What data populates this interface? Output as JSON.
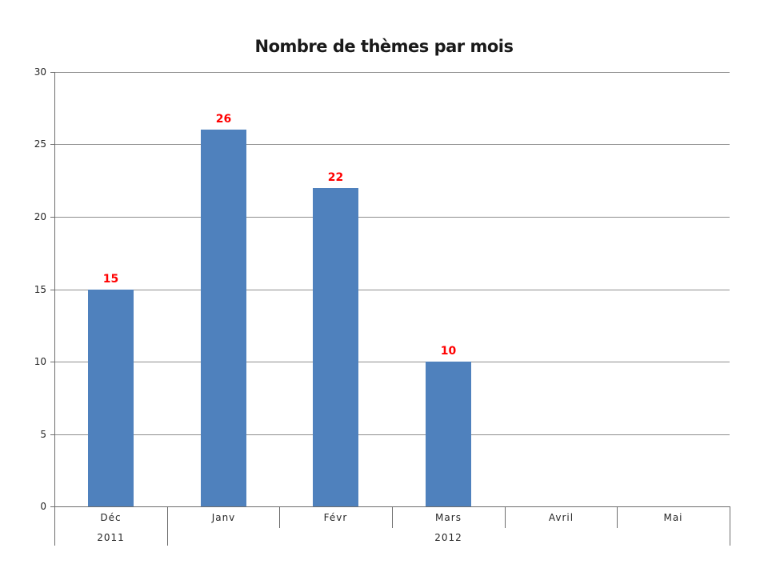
{
  "chart_data": {
    "type": "bar",
    "title": "Nombre de thèmes par mois",
    "categories": [
      "Déc",
      "Janv",
      "Févr",
      "Mars",
      "Avril",
      "Mai"
    ],
    "values": [
      15,
      26,
      22,
      10,
      null,
      null
    ],
    "data_labels": [
      "15",
      "26",
      "22",
      "10"
    ],
    "year_groups": [
      {
        "label": "2011",
        "span": 1
      },
      {
        "label": "2012",
        "span": 5
      }
    ],
    "ylim": [
      0,
      30
    ],
    "yticks": [
      0,
      5,
      10,
      15,
      20,
      25,
      30
    ],
    "grid": true,
    "legend": "none",
    "xlabel": "",
    "ylabel": "",
    "colors": {
      "bar": "#4f81bd",
      "data_label": "#ff0000",
      "gridline": "#8e8e8e",
      "axis": "#6e6e6e",
      "text": "#262626",
      "background": "#ffffff"
    }
  }
}
